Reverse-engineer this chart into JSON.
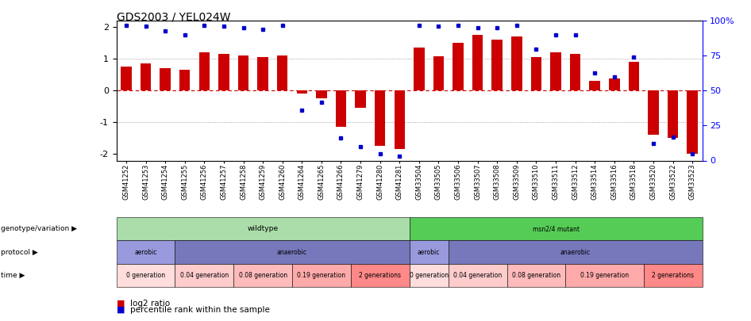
{
  "title": "GDS2003 / YEL024W",
  "samples": [
    "GSM41252",
    "GSM41253",
    "GSM41254",
    "GSM41255",
    "GSM41256",
    "GSM41257",
    "GSM41258",
    "GSM41259",
    "GSM41260",
    "GSM41264",
    "GSM41265",
    "GSM41266",
    "GSM41279",
    "GSM41280",
    "GSM41281",
    "GSM33504",
    "GSM33505",
    "GSM33506",
    "GSM33507",
    "GSM33508",
    "GSM33509",
    "GSM33510",
    "GSM33511",
    "GSM33512",
    "GSM33514",
    "GSM33516",
    "GSM33518",
    "GSM33520",
    "GSM33522",
    "GSM33523"
  ],
  "log2_ratio": [
    0.75,
    0.85,
    0.72,
    0.65,
    1.2,
    1.15,
    1.1,
    1.05,
    1.1,
    -0.08,
    -0.25,
    -1.15,
    -0.55,
    -1.75,
    -1.85,
    1.35,
    1.08,
    1.5,
    1.75,
    1.6,
    1.7,
    1.05,
    1.2,
    1.15,
    0.3,
    0.38,
    0.92,
    -1.4,
    -1.5,
    -2.0
  ],
  "percentile": [
    97,
    96,
    93,
    90,
    97,
    96,
    95,
    94,
    97,
    36,
    42,
    16,
    10,
    5,
    3,
    97,
    96,
    97,
    95,
    95,
    97,
    80,
    90,
    90,
    63,
    60,
    74,
    12,
    17,
    5
  ],
  "bar_color": "#cc0000",
  "dot_color": "#0000cc",
  "bg_color": "#ffffff",
  "zero_line_color": "#cc0000",
  "dotted_line_color": "#888888",
  "yticks_left": [
    -2,
    -1,
    0,
    1,
    2
  ],
  "yticks_right": [
    0,
    25,
    50,
    75,
    100
  ],
  "yticklabels_right": [
    "0",
    "25",
    "50",
    "75",
    "100%"
  ],
  "genotype_groups": [
    {
      "label": "wildtype",
      "start": 0,
      "end": 15,
      "color": "#aaddaa"
    },
    {
      "label": "msn2/4 mutant",
      "start": 15,
      "end": 30,
      "color": "#55cc55"
    }
  ],
  "protocol_groups": [
    {
      "label": "aerobic",
      "start": 0,
      "end": 3,
      "color": "#9999dd"
    },
    {
      "label": "anaerobic",
      "start": 3,
      "end": 15,
      "color": "#7777bb"
    },
    {
      "label": "aerobic",
      "start": 15,
      "end": 17,
      "color": "#9999dd"
    },
    {
      "label": "anaerobic",
      "start": 17,
      "end": 30,
      "color": "#7777bb"
    }
  ],
  "time_groups": [
    {
      "label": "0 generation",
      "start": 0,
      "end": 3,
      "color": "#ffdddd"
    },
    {
      "label": "0.04 generation",
      "start": 3,
      "end": 6,
      "color": "#ffcccc"
    },
    {
      "label": "0.08 generation",
      "start": 6,
      "end": 9,
      "color": "#ffbbbb"
    },
    {
      "label": "0.19 generation",
      "start": 9,
      "end": 12,
      "color": "#ffaaaa"
    },
    {
      "label": "2 generations",
      "start": 12,
      "end": 15,
      "color": "#ff8888"
    },
    {
      "label": "0 generation",
      "start": 15,
      "end": 17,
      "color": "#ffdddd"
    },
    {
      "label": "0.04 generation",
      "start": 17,
      "end": 20,
      "color": "#ffcccc"
    },
    {
      "label": "0.08 generation",
      "start": 20,
      "end": 23,
      "color": "#ffbbbb"
    },
    {
      "label": "0.19 generation",
      "start": 23,
      "end": 27,
      "color": "#ffaaaa"
    },
    {
      "label": "2 generations",
      "start": 27,
      "end": 30,
      "color": "#ff8888"
    }
  ],
  "legend_items": [
    {
      "color": "#cc0000",
      "label": "log2 ratio"
    },
    {
      "color": "#0000cc",
      "label": "percentile rank within the sample"
    }
  ],
  "row_labels": [
    "genotype/variation",
    "protocol",
    "time"
  ]
}
